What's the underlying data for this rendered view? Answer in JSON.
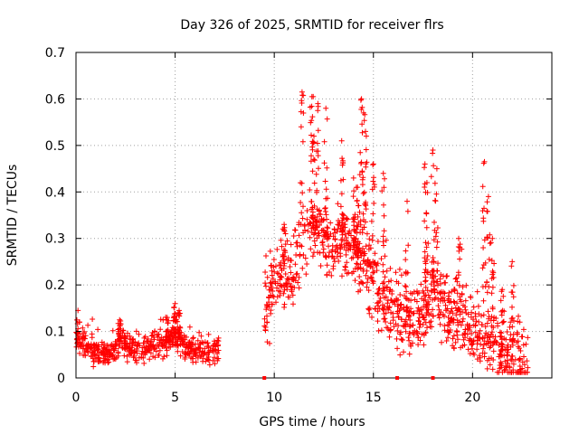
{
  "chart_data": {
    "type": "scatter",
    "title": "Day 326 of 2025, SRMTID for receiver flrs",
    "xlabel": "GPS time / hours",
    "ylabel": "SRMTID / TECUs",
    "xlim": [
      0,
      24
    ],
    "ylim": [
      0,
      0.7
    ],
    "xticks": [
      0,
      5,
      10,
      15,
      20
    ],
    "xtick_labels": [
      "0",
      "5",
      "10",
      "15",
      "20"
    ],
    "yticks": [
      0,
      0.1,
      0.2,
      0.3,
      0.4,
      0.5,
      0.6,
      0.7
    ],
    "ytick_labels": [
      "0",
      "0.1",
      "0.2",
      "0.3",
      "0.4",
      "0.5",
      "0.6",
      "0.7"
    ],
    "grid": true,
    "marker": "+",
    "color": "#ff0000",
    "gap_markers_x": [
      9.5,
      16.2,
      18.0
    ],
    "series": [
      {
        "name": "SRMTID",
        "segments": [
          {
            "x_start": 0.0,
            "x_end": 7.2,
            "profile": [
              [
                0.0,
                0.075
              ],
              [
                0.5,
                0.07
              ],
              [
                1.0,
                0.055
              ],
              [
                1.5,
                0.05
              ],
              [
                2.0,
                0.065
              ],
              [
                2.3,
                0.09
              ],
              [
                2.6,
                0.065
              ],
              [
                3.0,
                0.06
              ],
              [
                3.5,
                0.065
              ],
              [
                4.0,
                0.07
              ],
              [
                4.5,
                0.075
              ],
              [
                5.0,
                0.09
              ],
              [
                5.5,
                0.065
              ],
              [
                6.0,
                0.06
              ],
              [
                6.5,
                0.06
              ],
              [
                7.2,
                0.055
              ]
            ],
            "spread": 0.022,
            "spikes": [
              [
                0.1,
                0.145
              ],
              [
                2.2,
                0.125
              ],
              [
                4.6,
                0.13
              ],
              [
                5.0,
                0.16
              ],
              [
                5.2,
                0.145
              ]
            ]
          },
          {
            "x_start": 9.5,
            "x_end": 22.8,
            "profile": [
              [
                9.5,
                0.14
              ],
              [
                10.0,
                0.2
              ],
              [
                10.5,
                0.22
              ],
              [
                11.0,
                0.24
              ],
              [
                11.5,
                0.3
              ],
              [
                12.0,
                0.32
              ],
              [
                12.5,
                0.3
              ],
              [
                13.0,
                0.28
              ],
              [
                13.5,
                0.3
              ],
              [
                14.0,
                0.26
              ],
              [
                14.5,
                0.25
              ],
              [
                15.0,
                0.2
              ],
              [
                15.5,
                0.17
              ],
              [
                16.0,
                0.14
              ],
              [
                16.5,
                0.13
              ],
              [
                17.0,
                0.13
              ],
              [
                17.5,
                0.14
              ],
              [
                18.0,
                0.17
              ],
              [
                18.5,
                0.16
              ],
              [
                19.0,
                0.13
              ],
              [
                19.5,
                0.13
              ],
              [
                20.0,
                0.1
              ],
              [
                20.5,
                0.09
              ],
              [
                21.0,
                0.08
              ],
              [
                21.5,
                0.05
              ],
              [
                22.0,
                0.05
              ],
              [
                22.8,
                0.045
              ]
            ],
            "spread": 0.06,
            "spikes": [
              [
                10.5,
                0.33
              ],
              [
                11.4,
                0.615
              ],
              [
                11.9,
                0.605
              ],
              [
                12.2,
                0.59
              ],
              [
                12.6,
                0.58
              ],
              [
                12.0,
                0.52
              ],
              [
                13.4,
                0.51
              ],
              [
                14.0,
                0.43
              ],
              [
                14.2,
                0.41
              ],
              [
                14.4,
                0.6
              ],
              [
                14.5,
                0.57
              ],
              [
                14.6,
                0.53
              ],
              [
                15.0,
                0.46
              ],
              [
                15.5,
                0.44
              ],
              [
                16.7,
                0.38
              ],
              [
                17.6,
                0.46
              ],
              [
                17.7,
                0.42
              ],
              [
                18.0,
                0.49
              ],
              [
                18.2,
                0.45
              ],
              [
                19.3,
                0.3
              ],
              [
                20.6,
                0.465
              ],
              [
                20.8,
                0.39
              ],
              [
                21.0,
                0.3
              ],
              [
                21.5,
                0.19
              ],
              [
                22.0,
                0.25
              ]
            ]
          }
        ]
      }
    ]
  }
}
